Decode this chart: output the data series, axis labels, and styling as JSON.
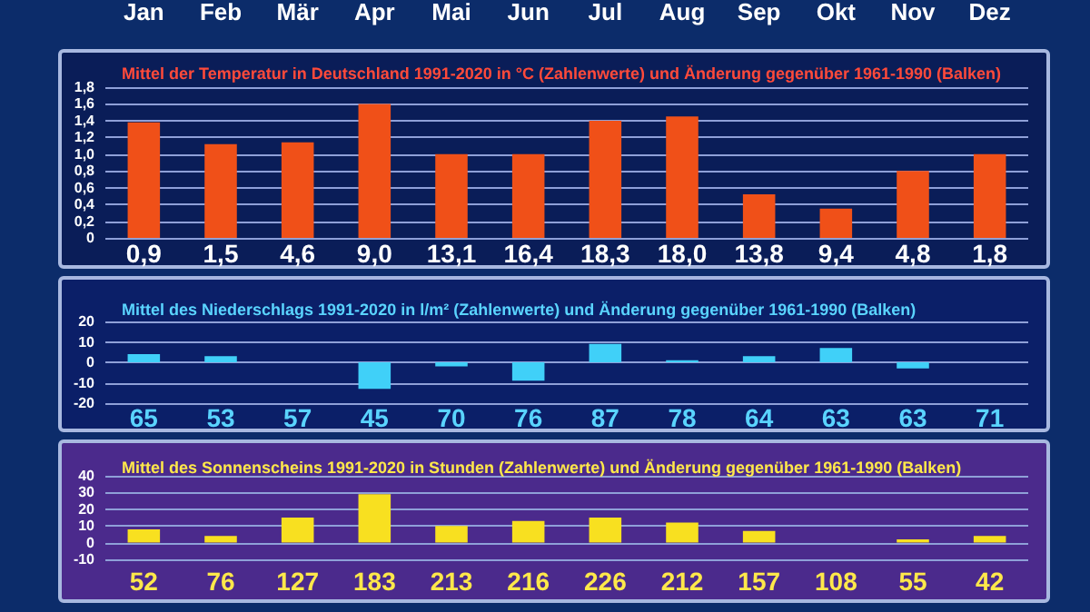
{
  "chart_data": [
    {
      "type": "bar",
      "title": "Mittel der Temperatur in Deutschland 1991-2020 in °C (Zahlenwerte) und Änderung gegenüber 1961-1990 (Balken)",
      "categories": [
        "Jan",
        "Feb",
        "Mär",
        "Apr",
        "Mai",
        "Jun",
        "Jul",
        "Aug",
        "Sep",
        "Okt",
        "Nov",
        "Dez"
      ],
      "values": [
        1.38,
        1.12,
        1.14,
        1.6,
        1.0,
        1.0,
        1.4,
        1.45,
        0.52,
        0.35,
        0.8,
        1.0
      ],
      "color": "#f05018",
      "annotations": [
        "0,9",
        "1,5",
        "4,6",
        "9,0",
        "13,1",
        "16,4",
        "18,3",
        "18,0",
        "13,8",
        "9,4",
        "4,8",
        "1,8"
      ],
      "ylim": [
        0,
        1.8
      ],
      "yticks": [
        0,
        {
          "value": 0.2,
          "label": "0,2"
        },
        {
          "value": 0.4,
          "label": "0,4"
        },
        {
          "value": 0.6,
          "label": "0,6"
        },
        {
          "value": 0.8,
          "label": "0,8"
        },
        {
          "value": 1.0,
          "label": "1,0"
        },
        {
          "value": 1.2,
          "label": "1,2"
        },
        {
          "value": 1.4,
          "label": "1,4"
        },
        {
          "value": 1.6,
          "label": "1,6"
        },
        {
          "value": 1.8,
          "label": "1,8"
        }
      ],
      "grid": "y"
    },
    {
      "type": "bar",
      "title": "Mittel des Niederschlags 1991-2020 in l/m² (Zahlenwerte) und Änderung gegenüber 1961-1990 (Balken)",
      "categories": [
        null,
        null,
        null,
        null,
        null,
        null,
        null,
        null,
        null,
        null,
        null,
        null
      ],
      "values": [
        4,
        3,
        0,
        -13,
        -2,
        -9,
        9,
        1,
        3,
        7,
        -3,
        0
      ],
      "color": "#40d0f8",
      "annotations": [
        "65",
        "53",
        "57",
        "45",
        "70",
        "76",
        "87",
        "78",
        "64",
        "63",
        "63",
        "71"
      ],
      "ylim": [
        -20,
        20
      ],
      "yticks": [
        -20,
        -10,
        0,
        10,
        20
      ],
      "grid": "y"
    },
    {
      "type": "bar",
      "title": "Mittel des Sonnenscheins 1991-2020 in Stunden (Zahlenwerte) und Änderung gegenüber 1961-1990 (Balken)",
      "categories": [
        null,
        null,
        null,
        null,
        null,
        null,
        null,
        null,
        null,
        null,
        null,
        null
      ],
      "values": [
        8,
        4,
        15,
        29,
        10,
        13,
        15,
        12,
        7,
        0,
        2,
        4
      ],
      "color": "#f8e020",
      "annotations": [
        "52",
        "76",
        "127",
        "183",
        "213",
        "216",
        "226",
        "212",
        "157",
        "108",
        "55",
        "42"
      ],
      "ylim": [
        -10,
        40
      ],
      "yticks": [
        -10,
        0,
        10,
        20,
        30,
        40
      ],
      "grid": "y"
    }
  ]
}
